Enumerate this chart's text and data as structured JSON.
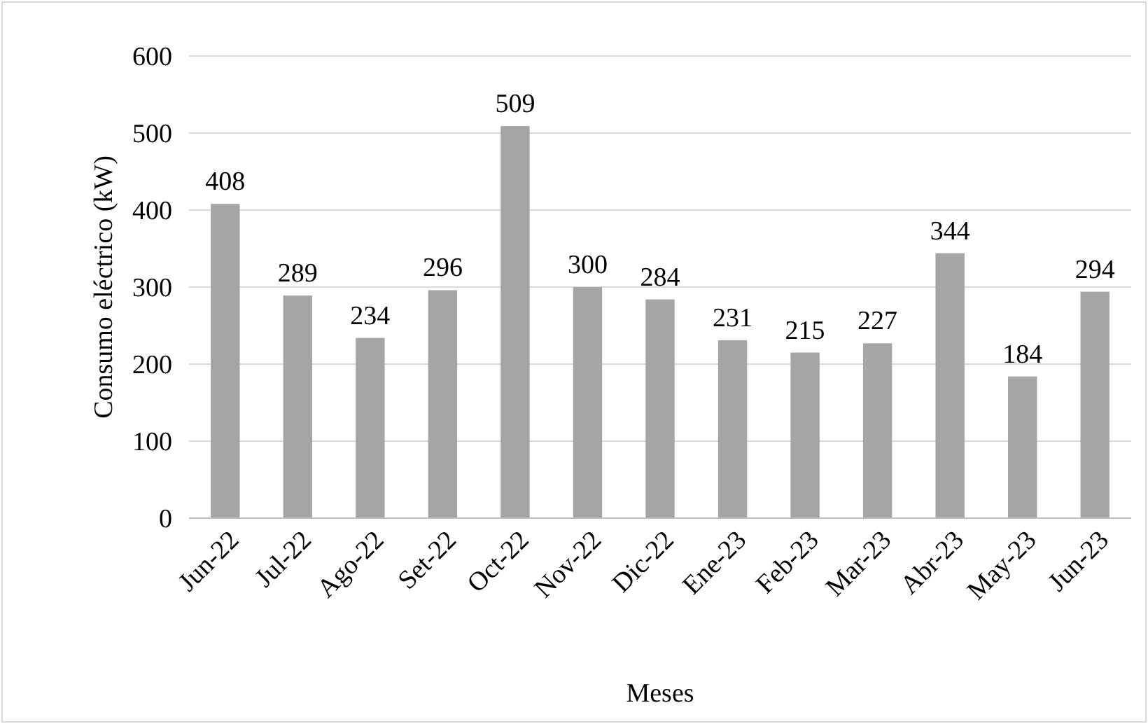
{
  "chart_data": {
    "type": "bar",
    "xlabel": "Meses",
    "ylabel": "Consumo eléctrico (kW)",
    "categories": [
      "Jun-22",
      "Jul-22",
      "Ago-22",
      "Set-22",
      "Oct-22",
      "Nov-22",
      "Dic-22",
      "Ene-23",
      "Feb-23",
      "Mar-23",
      "Abr-23",
      "May-23",
      "Jun-23"
    ],
    "values": [
      408,
      289,
      234,
      296,
      509,
      300,
      284,
      231,
      215,
      227,
      344,
      184,
      294
    ],
    "color": "#a5a5a5",
    "ylim": [
      0,
      600
    ],
    "yticks": [
      0,
      100,
      200,
      300,
      400,
      500,
      600
    ],
    "grid": "y",
    "data_labels": true
  }
}
